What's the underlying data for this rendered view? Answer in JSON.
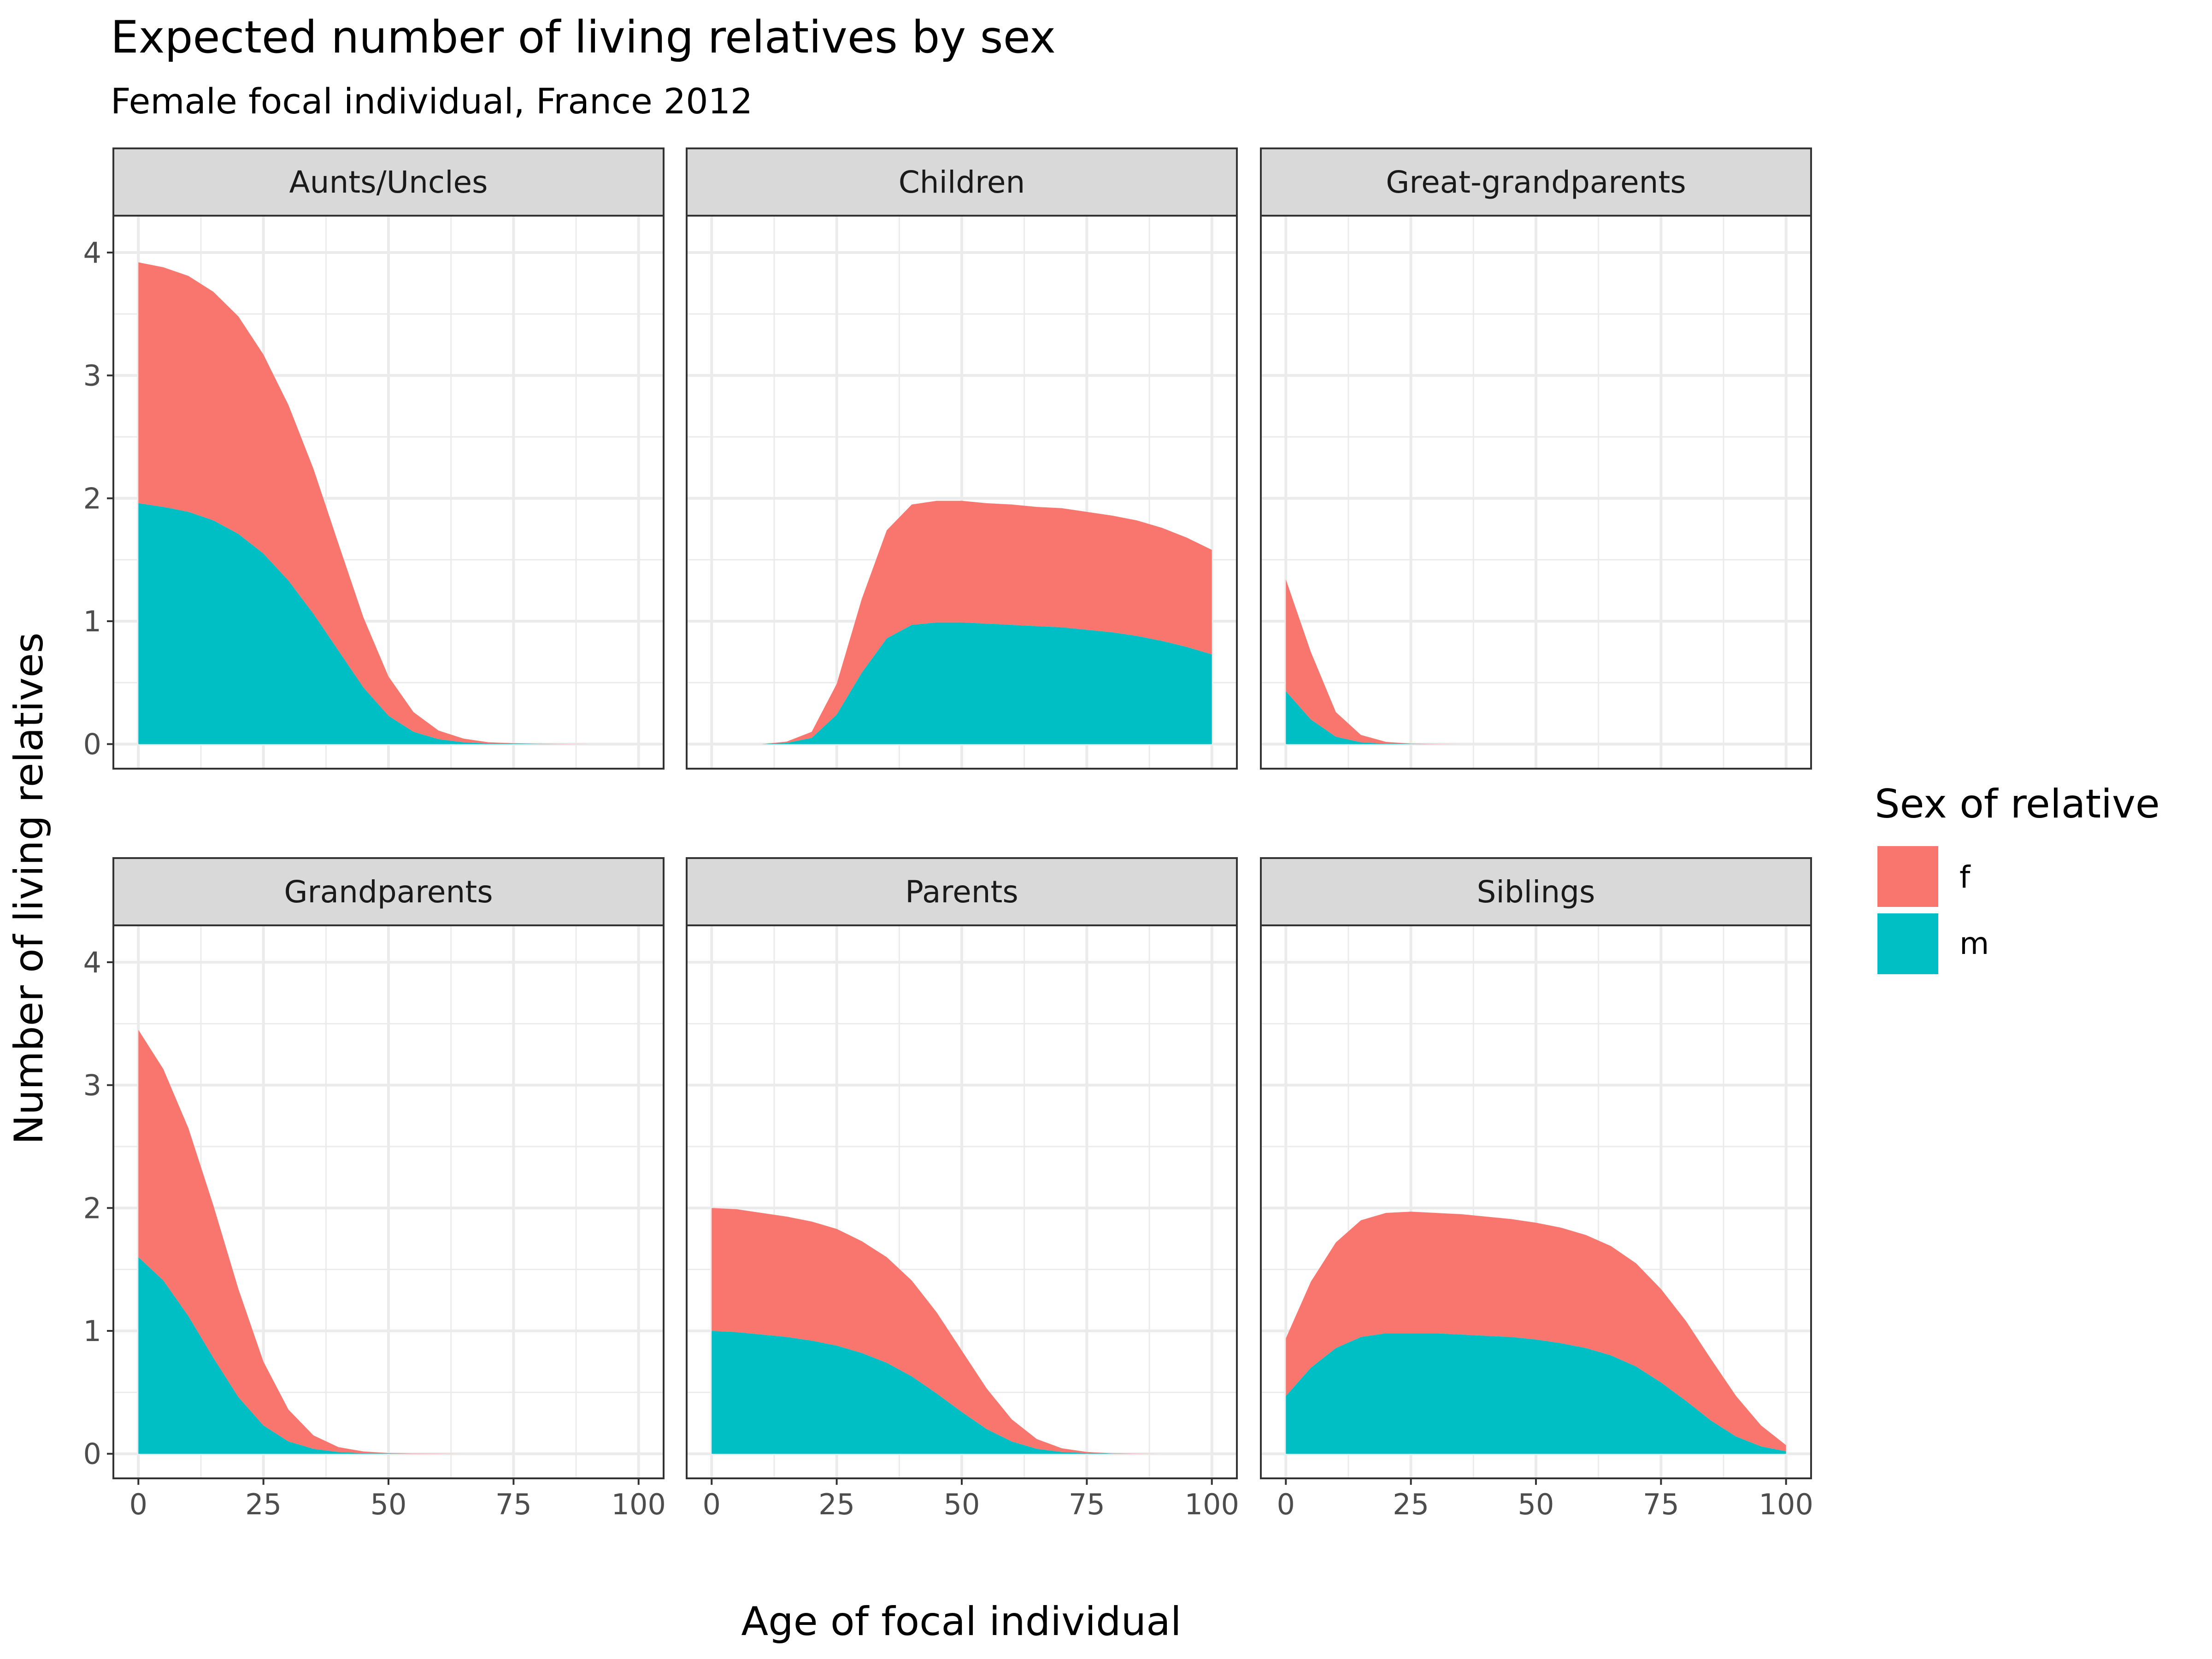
{
  "colors": {
    "f": "#F8766D",
    "m": "#00BFC4",
    "strip_bg": "#D9D9D9",
    "grid": "#EBEBEB",
    "border": "#333333"
  },
  "chart_data": {
    "type": "area",
    "stacked": true,
    "title": "Expected number of living relatives by sex",
    "subtitle": "Female focal individual, France 2012",
    "xlabel": "Age of focal individual",
    "ylabel": "Number of living relatives",
    "xlim": [
      -5,
      105
    ],
    "ylim": [
      -0.2,
      4.3
    ],
    "x_ticks": [
      0,
      25,
      50,
      75,
      100
    ],
    "x_tick_labels": [
      "0",
      "25",
      "50",
      "75",
      "100"
    ],
    "y_ticks": [
      0,
      1,
      2,
      3,
      4
    ],
    "y_tick_labels": [
      "0",
      "1",
      "2",
      "3",
      "4"
    ],
    "legend": {
      "title": "Sex of relative",
      "position": "right",
      "entries": [
        "f",
        "m"
      ]
    },
    "panels": [
      {
        "name": "Aunts/Uncles",
        "x_start": 0,
        "x_step": 5,
        "series": [
          {
            "name": "f",
            "values": [
              1.96,
              1.95,
              1.92,
              1.86,
              1.77,
              1.62,
              1.43,
              1.18,
              0.87,
              0.57,
              0.32,
              0.16,
              0.07,
              0.03,
              0.01,
              0.005,
              0.002,
              0.001,
              0,
              0,
              0
            ]
          },
          {
            "name": "m",
            "values": [
              1.96,
              1.93,
              1.89,
              1.82,
              1.71,
              1.55,
              1.33,
              1.06,
              0.76,
              0.46,
              0.23,
              0.1,
              0.04,
              0.015,
              0.005,
              0.002,
              0.001,
              0,
              0,
              0,
              0
            ]
          }
        ]
      },
      {
        "name": "Children",
        "x_start": 0,
        "x_step": 5,
        "series": [
          {
            "name": "f",
            "values": [
              0,
              0,
              0,
              0.01,
              0.05,
              0.25,
              0.6,
              0.88,
              0.98,
              0.99,
              0.99,
              0.98,
              0.98,
              0.97,
              0.97,
              0.96,
              0.95,
              0.94,
              0.92,
              0.89,
              0.85
            ]
          },
          {
            "name": "m",
            "values": [
              0,
              0,
              0,
              0.01,
              0.05,
              0.24,
              0.58,
              0.86,
              0.97,
              0.99,
              0.99,
              0.98,
              0.97,
              0.96,
              0.95,
              0.93,
              0.91,
              0.88,
              0.84,
              0.79,
              0.73
            ]
          }
        ]
      },
      {
        "name": "Great-grandparents",
        "x_start": 0,
        "x_step": 5,
        "series": [
          {
            "name": "f",
            "values": [
              0.91,
              0.55,
              0.2,
              0.06,
              0.015,
              0.003,
              0.001,
              0,
              0,
              0,
              0,
              0,
              0,
              0,
              0,
              0,
              0,
              0,
              0,
              0,
              0
            ]
          },
          {
            "name": "m",
            "values": [
              0.43,
              0.2,
              0.06,
              0.015,
              0.003,
              0.001,
              0,
              0,
              0,
              0,
              0,
              0,
              0,
              0,
              0,
              0,
              0,
              0,
              0,
              0,
              0
            ]
          }
        ]
      },
      {
        "name": "Grandparents",
        "x_start": 0,
        "x_step": 5,
        "series": [
          {
            "name": "f",
            "values": [
              1.85,
              1.72,
              1.53,
              1.24,
              0.88,
              0.52,
              0.26,
              0.11,
              0.04,
              0.015,
              0.005,
              0.002,
              0.001,
              0,
              0,
              0,
              0,
              0,
              0,
              0,
              0
            ]
          },
          {
            "name": "m",
            "values": [
              1.6,
              1.41,
              1.12,
              0.78,
              0.46,
              0.23,
              0.1,
              0.04,
              0.014,
              0.004,
              0.001,
              0,
              0,
              0,
              0,
              0,
              0,
              0,
              0,
              0,
              0
            ]
          }
        ]
      },
      {
        "name": "Parents",
        "x_start": 0,
        "x_step": 5,
        "series": [
          {
            "name": "f",
            "values": [
              1.0,
              1.0,
              0.99,
              0.98,
              0.97,
              0.95,
              0.91,
              0.86,
              0.78,
              0.66,
              0.5,
              0.33,
              0.18,
              0.08,
              0.03,
              0.01,
              0.003,
              0.001,
              0,
              0,
              0
            ]
          },
          {
            "name": "m",
            "values": [
              1.0,
              0.99,
              0.97,
              0.95,
              0.92,
              0.88,
              0.82,
              0.74,
              0.63,
              0.49,
              0.34,
              0.2,
              0.1,
              0.04,
              0.015,
              0.005,
              0.001,
              0,
              0,
              0,
              0
            ]
          }
        ]
      },
      {
        "name": "Siblings",
        "x_start": 0,
        "x_step": 5,
        "series": [
          {
            "name": "f",
            "values": [
              0.47,
              0.7,
              0.86,
              0.95,
              0.98,
              0.99,
              0.98,
              0.98,
              0.97,
              0.96,
              0.95,
              0.94,
              0.92,
              0.89,
              0.84,
              0.76,
              0.65,
              0.5,
              0.33,
              0.17,
              0.05
            ]
          },
          {
            "name": "m",
            "values": [
              0.47,
              0.7,
              0.86,
              0.95,
              0.98,
              0.98,
              0.98,
              0.97,
              0.96,
              0.95,
              0.93,
              0.9,
              0.86,
              0.8,
              0.71,
              0.58,
              0.43,
              0.27,
              0.14,
              0.06,
              0.02
            ]
          }
        ]
      }
    ]
  }
}
